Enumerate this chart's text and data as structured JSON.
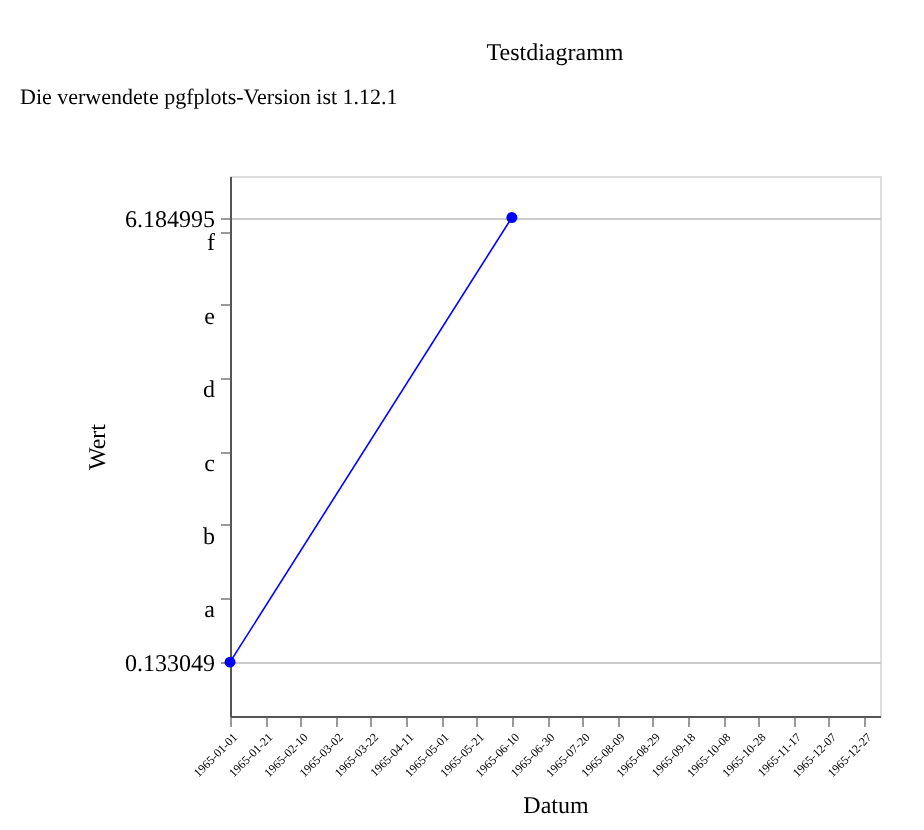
{
  "chart_data": {
    "type": "line",
    "title": "Testdiagramm",
    "xlabel": "Datum",
    "ylabel": "Wert",
    "annotations": [
      "Die verwendete pgfplots-Version ist 1.12.1"
    ],
    "x": [
      "1965-01-01",
      "1965-06-10"
    ],
    "series": [
      {
        "color": "#0000ff",
        "values": [
          0.133049,
          6.184995
        ]
      }
    ],
    "marker": "circle",
    "line_style": "solid",
    "grid": "y",
    "xlim": [
      "1965-01-01",
      "1966-01-05"
    ],
    "xticks": [
      "1965-01-01",
      "1965-01-21",
      "1965-02-10",
      "1965-03-02",
      "1965-03-22",
      "1965-04-11",
      "1965-05-01",
      "1965-05-21",
      "1965-06-10",
      "1965-06-30",
      "1965-07-20",
      "1965-08-09",
      "1965-08-29",
      "1965-09-18",
      "1965-10-08",
      "1965-10-28",
      "1965-11-17",
      "1965-12-07",
      "1965-12-27"
    ],
    "ylim": [
      -0.6,
      6.75
    ],
    "yticks": [
      0.133049,
      {
        "value": 1,
        "label": "a"
      },
      {
        "value": 2,
        "label": "b"
      },
      {
        "value": 3,
        "label": "c"
      },
      {
        "value": 4,
        "label": "d"
      },
      {
        "value": 5,
        "label": "e"
      },
      {
        "value": 6,
        "label": "f"
      },
      6.184995
    ]
  }
}
